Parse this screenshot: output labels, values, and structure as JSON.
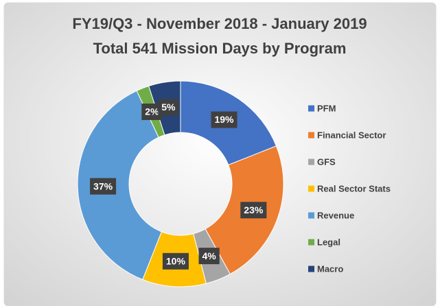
{
  "chart_data": {
    "type": "donut",
    "title": "FY19/Q3 - November 2018 - January 2019",
    "subtitle": "Total 541 Mission Days by Program",
    "categories": [
      "PFM",
      "Financial Sector",
      "GFS",
      "Real Sector Stats",
      "Revenue",
      "Legal",
      "Macro"
    ],
    "values": [
      19,
      23,
      4,
      10,
      37,
      2,
      5
    ],
    "value_labels": [
      "19%",
      "23%",
      "4%",
      "10%",
      "37%",
      "2%",
      "5%"
    ],
    "colors": [
      "#4472c4",
      "#ed7d31",
      "#a5a5a5",
      "#ffc000",
      "#5b9bd5",
      "#70ad47",
      "#264478"
    ],
    "legend": "right"
  }
}
